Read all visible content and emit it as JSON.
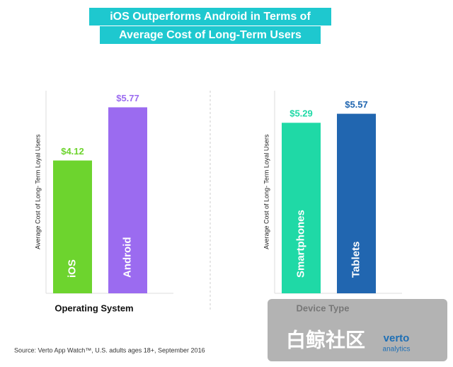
{
  "title": [
    "iOS Outperforms Android in Terms of",
    "Average Cost of Long-Term Users"
  ],
  "source": "Source: Verto App Watch™, U.S. adults ages 18+, September 2016",
  "watermark": "白鲸社区",
  "logo": [
    "verto",
    "analytics"
  ],
  "chart_data": [
    {
      "type": "bar",
      "ylabel": "Average Cost of Long- Term Loyal Users",
      "xlabel": "Operating System",
      "categories": [
        "iOS",
        "Android"
      ],
      "values": [
        4.12,
        5.77
      ],
      "value_labels": [
        "$4.12",
        "$5.77"
      ],
      "colors": [
        "#6dd42e",
        "#9b6bf0"
      ],
      "ylim": [
        0,
        7
      ]
    },
    {
      "type": "bar",
      "ylabel": "Average Cost of Long- Term Loyal Users",
      "xlabel": "Device Type",
      "categories": [
        "Smartphones",
        "Tablets"
      ],
      "values": [
        5.29,
        5.57
      ],
      "value_labels": [
        "$5.29",
        "$5.57"
      ],
      "colors": [
        "#1fd9a6",
        "#2166b0"
      ],
      "ylim": [
        0,
        7
      ]
    }
  ]
}
